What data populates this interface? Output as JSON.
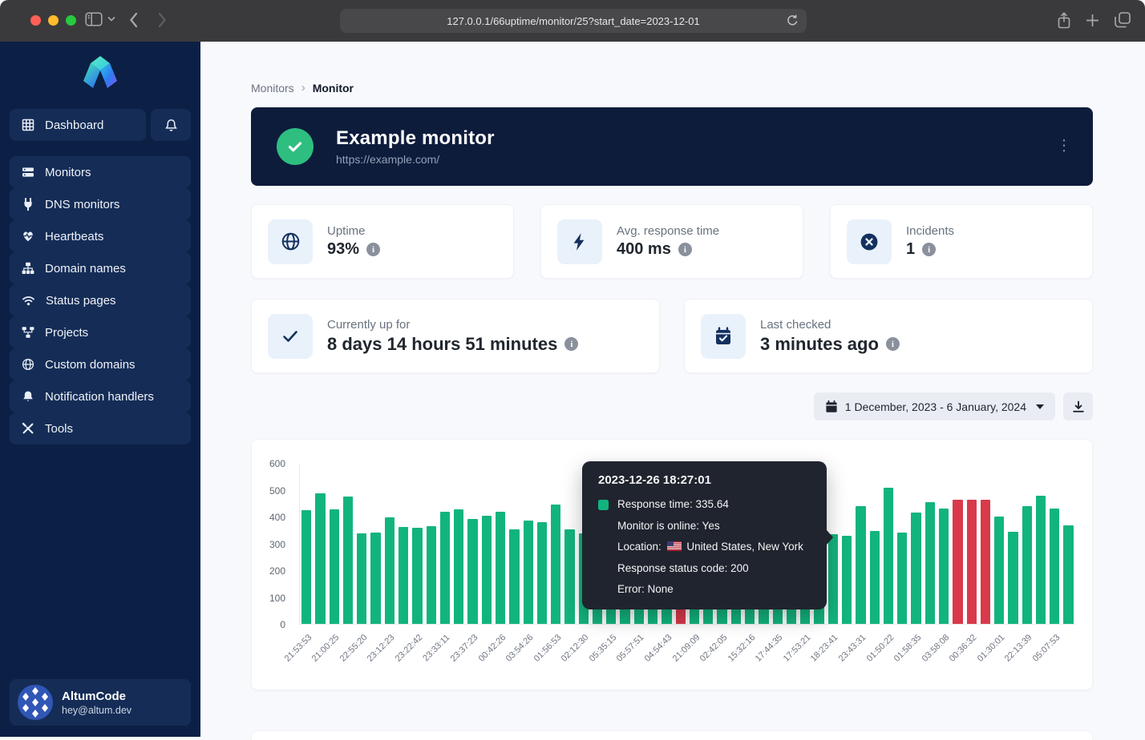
{
  "browser": {
    "url": "127.0.0.1/66uptime/monitor/25?start_date=2023-12-01"
  },
  "sidebar": {
    "items": [
      {
        "label": "Dashboard",
        "icon": "grid-icon"
      },
      {
        "label": "Monitors",
        "icon": "server-icon"
      },
      {
        "label": "DNS monitors",
        "icon": "plug-icon"
      },
      {
        "label": "Heartbeats",
        "icon": "heart-pulse-icon"
      },
      {
        "label": "Domain names",
        "icon": "sitemap-icon"
      },
      {
        "label": "Status pages",
        "icon": "wifi-icon"
      },
      {
        "label": "Projects",
        "icon": "diagram-icon"
      },
      {
        "label": "Custom domains",
        "icon": "globe-icon"
      },
      {
        "label": "Notification handlers",
        "icon": "bell-icon"
      },
      {
        "label": "Tools",
        "icon": "tools-icon"
      }
    ],
    "user": {
      "name": "AltumCode",
      "email": "hey@altum.dev"
    }
  },
  "breadcrumb": {
    "parent": "Monitors",
    "current": "Monitor"
  },
  "monitor": {
    "name": "Example monitor",
    "url": "https://example.com/"
  },
  "stats": {
    "uptime": {
      "label": "Uptime",
      "value": "93%"
    },
    "response": {
      "label": "Avg. response time",
      "value": "400 ms"
    },
    "incidents": {
      "label": "Incidents",
      "value": "1"
    },
    "up_for": {
      "label": "Currently up for",
      "value": "8 days 14 hours 51 minutes"
    },
    "last_checked": {
      "label": "Last checked",
      "value": "3 minutes ago"
    }
  },
  "toolbar": {
    "date_range": "1 December, 2023 - 6 January, 2024"
  },
  "tooltip": {
    "title": "2023-12-26 18:27:01",
    "response_time": "Response time: 335.64",
    "online": "Monitor is online: Yes",
    "location_label": "Location:",
    "location_value": "United States, New York",
    "status_code": "Response status code: 200",
    "error": "Error: None"
  },
  "chart_data": {
    "type": "bar",
    "title": "",
    "xlabel": "",
    "ylabel": "",
    "ylim": [
      0,
      600
    ],
    "yticks": [
      0,
      100,
      200,
      300,
      400,
      500,
      600
    ],
    "grid": false,
    "legend_position": "none",
    "x_tick_every": 2,
    "x_tick_labels": [
      "21:53:53",
      "21:00:25",
      "22:55:20",
      "23:12:23",
      "23:22:42",
      "23:33:11",
      "23:37:23",
      "00:42:26",
      "03:54:26",
      "01:56:53",
      "02:12:30",
      "05:35:15",
      "05:57:51",
      "04:54:43",
      "21:09:09",
      "02:42:05",
      "15:32:16",
      "17:44:35",
      "17:53:21",
      "18:23:41",
      "23:43:31",
      "01:50:22",
      "01:58:35",
      "03:58:08",
      "00:36:32",
      "01:30:01",
      "22:13:39",
      "05:07:53"
    ],
    "values": [
      425,
      490,
      430,
      477,
      340,
      343,
      398,
      364,
      361,
      366,
      420,
      430,
      392,
      405,
      421,
      353,
      387,
      381,
      448,
      355,
      338,
      360,
      410,
      385,
      430,
      355,
      400,
      455,
      370,
      345,
      420,
      390,
      365,
      440,
      380,
      410,
      355,
      395,
      335.64,
      330,
      440,
      347,
      510,
      343,
      418,
      457,
      433,
      465,
      465,
      465,
      403,
      346,
      442,
      480,
      433,
      370
    ],
    "down_indices": [
      27,
      47,
      48,
      49
    ],
    "highlighted_index": 38,
    "colors": {
      "up": "#12b47e",
      "down": "#d9394b"
    }
  }
}
